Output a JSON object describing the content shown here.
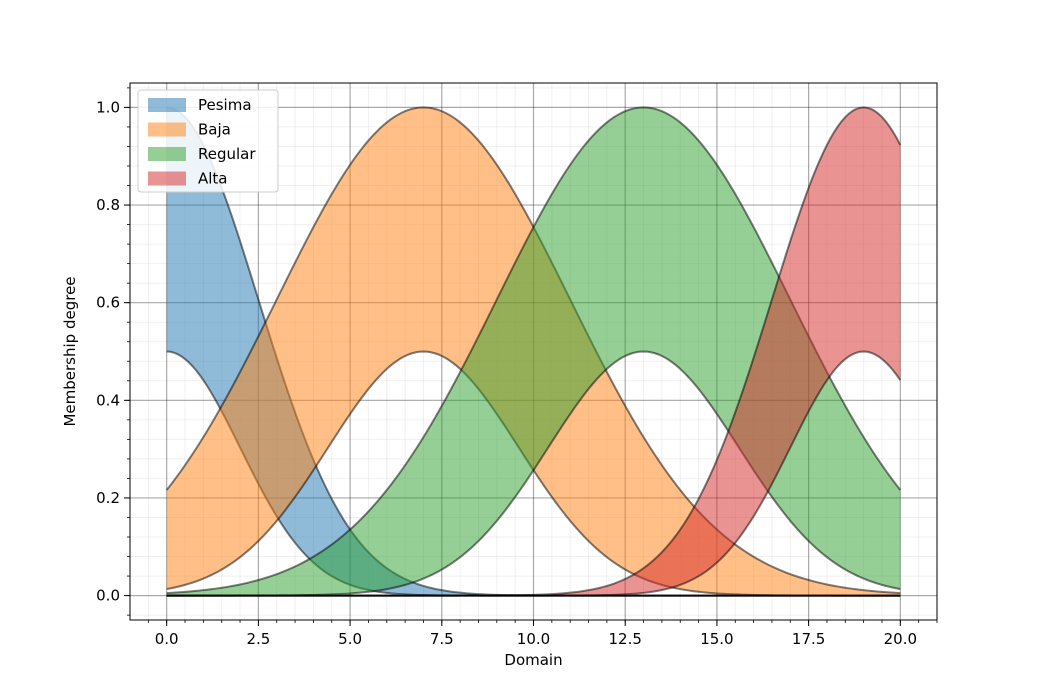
{
  "chart_data": {
    "type": "area",
    "xlabel": "Domain",
    "ylabel": "Membership degree",
    "xlim": [
      -1,
      21
    ],
    "ylim": [
      -0.05,
      1.05
    ],
    "x_ticks": [
      0,
      2.5,
      5,
      7.5,
      10,
      12.5,
      15,
      17.5,
      20
    ],
    "x_tick_labels": [
      "0.0",
      "2.5",
      "5.0",
      "7.5",
      "10.0",
      "12.5",
      "15.0",
      "17.5",
      "20.0"
    ],
    "y_ticks": [
      0,
      0.2,
      0.4,
      0.6,
      0.8,
      1.0
    ],
    "y_tick_labels": [
      "0.0",
      "0.2",
      "0.4",
      "0.6",
      "0.8",
      "1.0"
    ],
    "grid": true,
    "minor_grid": true,
    "legend_position": "top-left",
    "domain": [
      0,
      20
    ],
    "series": [
      {
        "name": "Pesima",
        "color": "#1f77b4",
        "center": 0,
        "upper": {
          "height": 1.0,
          "sigma": 2.5
        },
        "lower": {
          "height": 0.5,
          "sigma": 2.0
        }
      },
      {
        "name": "Baja",
        "color": "#ff7f0e",
        "center": 7,
        "upper": {
          "height": 1.0,
          "sigma": 4.0
        },
        "lower": {
          "height": 0.5,
          "sigma": 2.6
        }
      },
      {
        "name": "Regular",
        "color": "#2ca02c",
        "center": 13,
        "upper": {
          "height": 1.0,
          "sigma": 4.0
        },
        "lower": {
          "height": 0.5,
          "sigma": 2.6
        }
      },
      {
        "name": "Alta",
        "color": "#d62728",
        "center": 19,
        "upper": {
          "height": 1.0,
          "sigma": 2.5
        },
        "lower": {
          "height": 0.5,
          "sigma": 2.0
        }
      }
    ]
  }
}
